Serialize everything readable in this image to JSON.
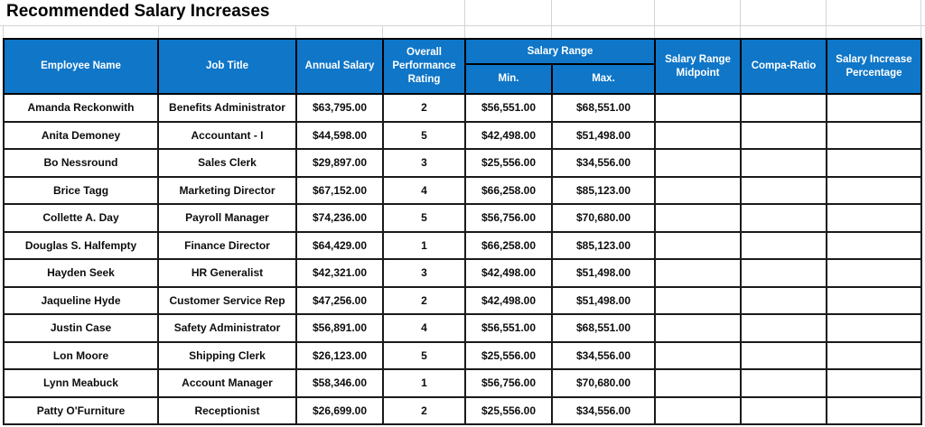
{
  "title": "Recommended Salary Increases",
  "colors": {
    "header_bg": "#0F76C8",
    "header_text": "#FFFFFF",
    "cell_border": "#1A1A1A",
    "gridline": "#D4D4D4",
    "data_text": "#0D0D0D"
  },
  "table": {
    "salary_range_group_label": "Salary Range",
    "columns": [
      {
        "key": "employee_name",
        "label": "Employee Name"
      },
      {
        "key": "job_title",
        "label": "Job Title"
      },
      {
        "key": "annual_salary",
        "label": "Annual Salary"
      },
      {
        "key": "rating",
        "label": "Overall Performance Rating"
      },
      {
        "key": "min",
        "label": "Min."
      },
      {
        "key": "max",
        "label": "Max."
      },
      {
        "key": "midpoint",
        "label": "Salary Range Midpoint"
      },
      {
        "key": "compa_ratio",
        "label": "Compa-Ratio"
      },
      {
        "key": "increase_pct",
        "label": "Salary Increase Percentage"
      }
    ],
    "rows": [
      {
        "employee_name": "Amanda Reckonwith",
        "job_title": "Benefits Administrator",
        "annual_salary": "$63,795.00",
        "rating": "2",
        "min": "$56,551.00",
        "max": "$68,551.00",
        "midpoint": "",
        "compa_ratio": "",
        "increase_pct": ""
      },
      {
        "employee_name": "Anita Demoney",
        "job_title": "Accountant - I",
        "annual_salary": "$44,598.00",
        "rating": "5",
        "min": "$42,498.00",
        "max": "$51,498.00",
        "midpoint": "",
        "compa_ratio": "",
        "increase_pct": ""
      },
      {
        "employee_name": "Bo Nessround",
        "job_title": "Sales Clerk",
        "annual_salary": "$29,897.00",
        "rating": "3",
        "min": "$25,556.00",
        "max": "$34,556.00",
        "midpoint": "",
        "compa_ratio": "",
        "increase_pct": ""
      },
      {
        "employee_name": "Brice Tagg",
        "job_title": "Marketing Director",
        "annual_salary": "$67,152.00",
        "rating": "4",
        "min": "$66,258.00",
        "max": "$85,123.00",
        "midpoint": "",
        "compa_ratio": "",
        "increase_pct": ""
      },
      {
        "employee_name": "Collette A. Day",
        "job_title": "Payroll Manager",
        "annual_salary": "$74,236.00",
        "rating": "5",
        "min": "$56,756.00",
        "max": "$70,680.00",
        "midpoint": "",
        "compa_ratio": "",
        "increase_pct": ""
      },
      {
        "employee_name": "Douglas S. Halfempty",
        "job_title": "Finance Director",
        "annual_salary": "$64,429.00",
        "rating": "1",
        "min": "$66,258.00",
        "max": "$85,123.00",
        "midpoint": "",
        "compa_ratio": "",
        "increase_pct": ""
      },
      {
        "employee_name": "Hayden Seek",
        "job_title": "HR Generalist",
        "annual_salary": "$42,321.00",
        "rating": "3",
        "min": "$42,498.00",
        "max": "$51,498.00",
        "midpoint": "",
        "compa_ratio": "",
        "increase_pct": ""
      },
      {
        "employee_name": "Jaqueline Hyde",
        "job_title": "Customer Service Rep",
        "annual_salary": "$47,256.00",
        "rating": "2",
        "min": "$42,498.00",
        "max": "$51,498.00",
        "midpoint": "",
        "compa_ratio": "",
        "increase_pct": ""
      },
      {
        "employee_name": "Justin Case",
        "job_title": "Safety Administrator",
        "annual_salary": "$56,891.00",
        "rating": "4",
        "min": "$56,551.00",
        "max": "$68,551.00",
        "midpoint": "",
        "compa_ratio": "",
        "increase_pct": ""
      },
      {
        "employee_name": "Lon Moore",
        "job_title": "Shipping Clerk",
        "annual_salary": "$26,123.00",
        "rating": "5",
        "min": "$25,556.00",
        "max": "$34,556.00",
        "midpoint": "",
        "compa_ratio": "",
        "increase_pct": ""
      },
      {
        "employee_name": "Lynn Meabuck",
        "job_title": "Account Manager",
        "annual_salary": "$58,346.00",
        "rating": "1",
        "min": "$56,756.00",
        "max": "$70,680.00",
        "midpoint": "",
        "compa_ratio": "",
        "increase_pct": ""
      },
      {
        "employee_name": "Patty O'Furniture",
        "job_title": "Receptionist",
        "annual_salary": "$26,699.00",
        "rating": "2",
        "min": "$25,556.00",
        "max": "$34,556.00",
        "midpoint": "",
        "compa_ratio": "",
        "increase_pct": ""
      }
    ]
  }
}
